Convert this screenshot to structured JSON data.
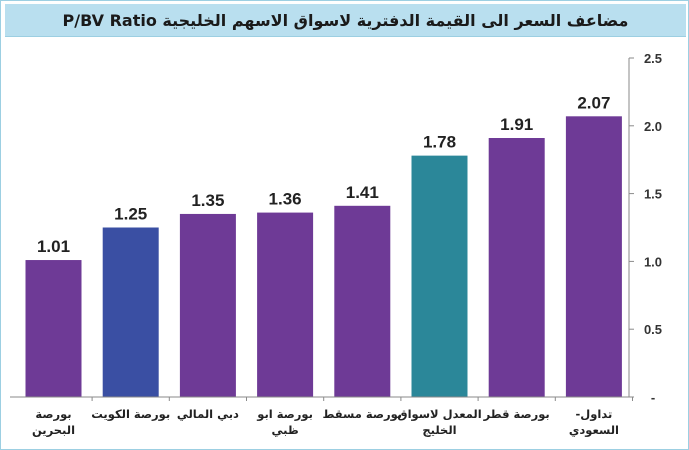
{
  "colors": {
    "bar_default": "#6e3a96",
    "bar_kuwait": "#3a4fa3",
    "bar_gcc_average": "#2b8799",
    "title_background": "#b9dfef"
  },
  "chart_data": {
    "type": "bar",
    "title": "مضاعف السعر الى القيمة الدفترية لاسواق الاسهم الخليجية P/BV Ratio",
    "xlabel": "",
    "ylabel": "",
    "ylim": [
      0,
      2.5
    ],
    "yticks": [
      {
        "value": 0,
        "label": "-"
      },
      {
        "value": 0.5,
        "label": "0.5"
      },
      {
        "value": 1.0,
        "label": "1.0"
      },
      {
        "value": 1.5,
        "label": "1.5"
      },
      {
        "value": 2.0,
        "label": "2.0"
      },
      {
        "value": 2.5,
        "label": "2.5"
      }
    ],
    "y_axis_position": "right",
    "grid": false,
    "legend": "none",
    "categories": [
      {
        "lines": [
          "بورصة",
          "البحرين"
        ]
      },
      {
        "lines": [
          "بورصة الكويت"
        ]
      },
      {
        "lines": [
          "دبي المالي"
        ]
      },
      {
        "lines": [
          "بورصة ابو",
          "ظبي"
        ]
      },
      {
        "lines": [
          "بورصة مسقط"
        ]
      },
      {
        "lines": [
          "المعدل لاسواق",
          "الخليج"
        ]
      },
      {
        "lines": [
          "بورصة قطر"
        ]
      },
      {
        "lines": [
          "تداول-",
          "السعودي"
        ]
      }
    ],
    "values": [
      1.01,
      1.25,
      1.35,
      1.36,
      1.41,
      1.78,
      1.91,
      2.07
    ],
    "value_labels": [
      "1.01",
      "1.25",
      "1.35",
      "1.36",
      "1.41",
      "1.78",
      "1.91",
      "2.07"
    ],
    "bar_colors": [
      "#6e3a96",
      "#3a4fa3",
      "#6e3a96",
      "#6e3a96",
      "#6e3a96",
      "#2b8799",
      "#6e3a96",
      "#6e3a96"
    ]
  }
}
